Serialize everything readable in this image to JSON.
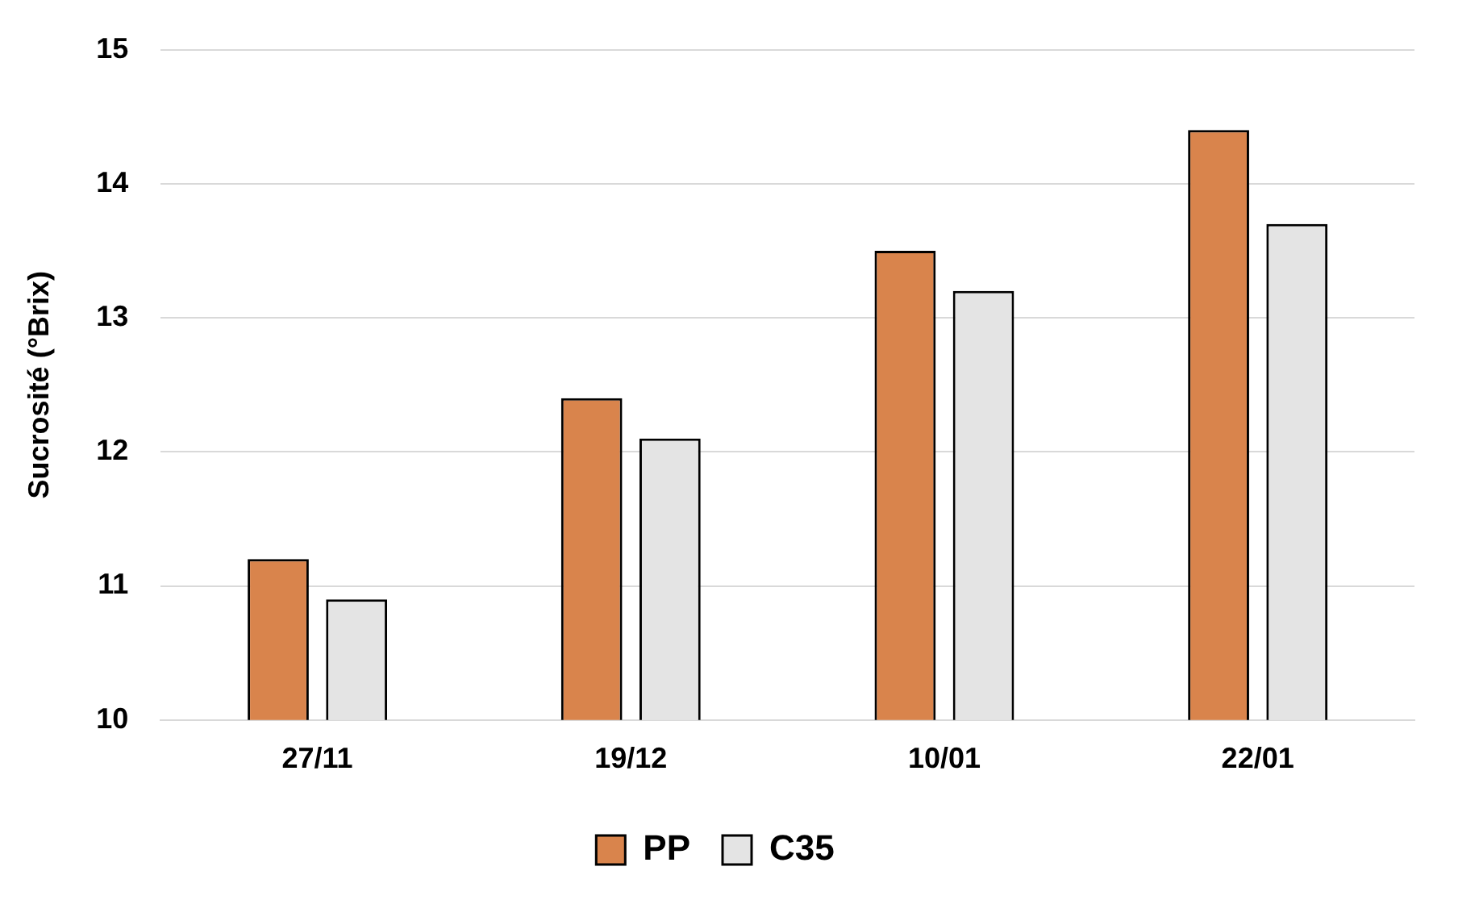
{
  "chart_data": {
    "type": "bar",
    "ylabel": "Sucrosité (°Brix)",
    "categories": [
      "27/11",
      "19/12",
      "10/01",
      "22/01"
    ],
    "series": [
      {
        "name": "PP",
        "color": "#d9844c",
        "values": [
          11.2,
          12.4,
          13.5,
          14.4
        ]
      },
      {
        "name": "C35",
        "color": "#e4e4e4",
        "values": [
          10.9,
          12.1,
          13.2,
          13.7
        ]
      }
    ],
    "ylim": [
      10,
      15
    ],
    "yticks": [
      10,
      11,
      12,
      13,
      14,
      15
    ],
    "grid": "y",
    "legend": "bottom"
  }
}
